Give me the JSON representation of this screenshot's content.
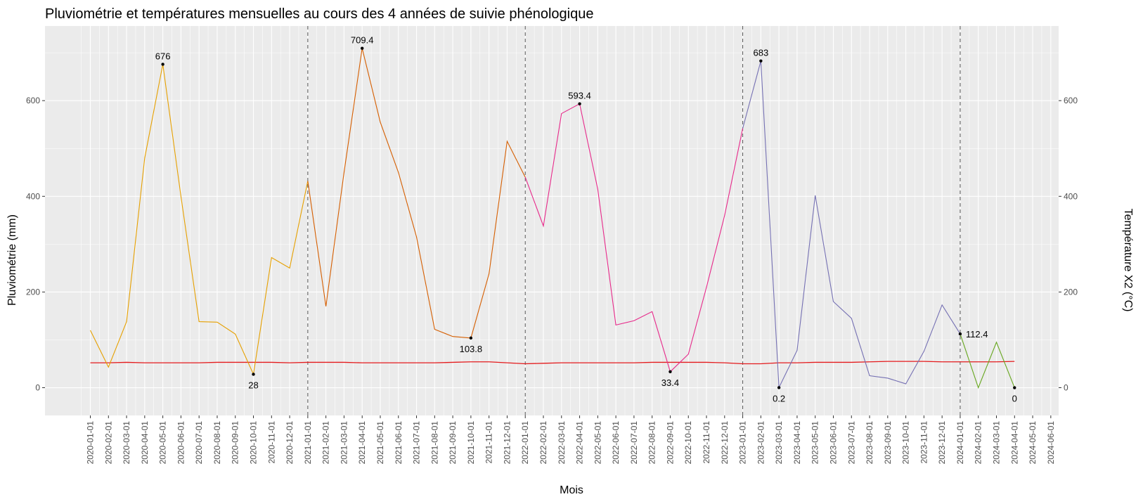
{
  "chart_data": {
    "type": "line",
    "title": "Pluviométrie et températures mensuelles au cours des 4 années de suivie phénologique",
    "xlabel": "Mois",
    "ylabel": "Pluviométrie (mm)",
    "y2label": "Température X2 (°C)",
    "ylim": [
      -58,
      756
    ],
    "y_ticks": [
      0,
      200,
      400,
      600
    ],
    "y2_ticks": [
      0,
      200,
      400,
      600
    ],
    "grid": true,
    "legend": "none",
    "x_categories": [
      "2020-01-01",
      "2020-02-01",
      "2020-03-01",
      "2020-04-01",
      "2020-05-01",
      "2020-06-01",
      "2020-07-01",
      "2020-08-01",
      "2020-09-01",
      "2020-10-01",
      "2020-11-01",
      "2020-12-01",
      "2021-01-01",
      "2021-02-01",
      "2021-03-01",
      "2021-04-01",
      "2021-05-01",
      "2021-06-01",
      "2021-07-01",
      "2021-08-01",
      "2021-09-01",
      "2021-10-01",
      "2021-11-01",
      "2021-12-01",
      "2022-01-01",
      "2022-02-01",
      "2022-03-01",
      "2022-04-01",
      "2022-05-01",
      "2022-06-01",
      "2022-07-01",
      "2022-08-01",
      "2022-09-01",
      "2022-10-01",
      "2022-11-01",
      "2022-12-01",
      "2023-01-01",
      "2023-02-01",
      "2023-03-01",
      "2023-04-01",
      "2023-05-01",
      "2023-06-01",
      "2023-07-01",
      "2023-08-01",
      "2023-09-01",
      "2023-10-01",
      "2023-11-01",
      "2023-12-01",
      "2024-01-01",
      "2024-02-01",
      "2024-03-01",
      "2024-04-01",
      "2024-05-01",
      "2024-06-01"
    ],
    "vlines": [
      "2021-01-01",
      "2022-01-01",
      "2023-01-01",
      "2024-01-01"
    ],
    "series": [
      {
        "color": "#E6A000",
        "start": 0,
        "values": [
          120,
          43,
          138,
          480,
          676,
          400,
          138,
          137,
          112,
          28,
          272,
          250,
          432
        ]
      },
      {
        "color": "#D55E00",
        "start": 12,
        "values": [
          432,
          170,
          450,
          709.4,
          555,
          450,
          315,
          122,
          107,
          103.8,
          238,
          515,
          440
        ]
      },
      {
        "color": "#E7298A",
        "start": 24,
        "values": [
          440,
          338,
          573,
          593.4,
          415,
          131,
          140,
          159,
          33.4,
          70,
          210,
          360,
          542
        ]
      },
      {
        "color": "#7570B3",
        "start": 36,
        "values": [
          542,
          683,
          0.2,
          78,
          402,
          180,
          145,
          25,
          20,
          8,
          76,
          173,
          112.4
        ]
      },
      {
        "color": "#66A61E",
        "start": 48,
        "values": [
          112.4,
          0,
          95,
          0
        ]
      }
    ],
    "temperature": {
      "color": "#E41A1C",
      "start": 0,
      "values": [
        52,
        52,
        53,
        52,
        52,
        52,
        52,
        53,
        53,
        53,
        53,
        52,
        53,
        53,
        53,
        52,
        52,
        52,
        52,
        52,
        53,
        54,
        54,
        52,
        50,
        51,
        52,
        52,
        52,
        52,
        52,
        53,
        53,
        53,
        53,
        52,
        50,
        50,
        52,
        52,
        53,
        53,
        53,
        54,
        55,
        55,
        55,
        54,
        54,
        54,
        54,
        55
      ]
    },
    "annotations": [
      {
        "x": "2020-05-01",
        "y": 676,
        "label": "676",
        "pos": "above"
      },
      {
        "x": "2020-10-01",
        "y": 28,
        "label": "28",
        "pos": "below"
      },
      {
        "x": "2021-04-01",
        "y": 709.4,
        "label": "709.4",
        "pos": "above"
      },
      {
        "x": "2021-10-01",
        "y": 103.8,
        "label": "103.8",
        "pos": "below"
      },
      {
        "x": "2022-04-01",
        "y": 593.4,
        "label": "593.4",
        "pos": "above"
      },
      {
        "x": "2022-09-01",
        "y": 33.4,
        "label": "33.4",
        "pos": "below"
      },
      {
        "x": "2023-02-01",
        "y": 683,
        "label": "683",
        "pos": "above"
      },
      {
        "x": "2023-03-01",
        "y": 0.2,
        "label": "0.2",
        "pos": "below"
      },
      {
        "x": "2024-01-01",
        "y": 112.4,
        "label": "112.4",
        "pos": "right"
      },
      {
        "x": "2024-04-01",
        "y": 0,
        "label": "0",
        "pos": "below"
      }
    ]
  }
}
